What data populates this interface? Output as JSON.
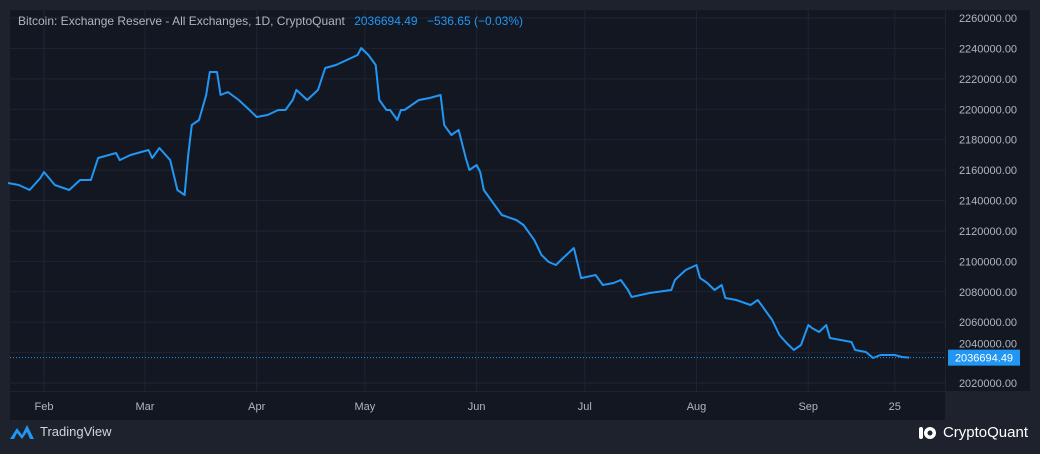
{
  "legend": {
    "title": "Bitcoin: Exchange Reserve - All Exchanges, 1D, CryptoQuant",
    "last_value": "2036694.49",
    "change": "−536.65 (−0.03%)"
  },
  "footer": {
    "left_brand": "TradingView",
    "right_brand": "CryptoQuant"
  },
  "colors": {
    "line": "#2196f3",
    "background": "#131722",
    "grid": "#1f2433",
    "text": "#b2b5be"
  },
  "chart_data": {
    "type": "line",
    "title": "Bitcoin: Exchange Reserve - All Exchanges, 1D, CryptoQuant",
    "ylim": [
      2010000,
      2265000
    ],
    "y_ticks": [
      "2260000.00",
      "2240000.00",
      "2220000.00",
      "2200000.00",
      "2180000.00",
      "2160000.00",
      "2140000.00",
      "2120000.00",
      "2100000.00",
      "2080000.00",
      "2060000.00",
      "2040000.00",
      "2020000.00"
    ],
    "x_ticks": [
      {
        "label": "Feb",
        "date": "02-01"
      },
      {
        "label": "Mar",
        "date": "03-01"
      },
      {
        "label": "Apr",
        "date": "04-01"
      },
      {
        "label": "May",
        "date": "05-01"
      },
      {
        "label": "Jun",
        "date": "06-01"
      },
      {
        "label": "Jul",
        "date": "07-01"
      },
      {
        "label": "Aug",
        "date": "08-01"
      },
      {
        "label": "Sep",
        "date": "09-01"
      },
      {
        "label": "25",
        "date": "09-25"
      }
    ],
    "last_price_label": "2036694.49",
    "last_price": 2036694.49,
    "grid": true,
    "series": [
      {
        "points": [
          [
            "01-22",
            2151500
          ],
          [
            "01-25",
            2150200
          ],
          [
            "01-28",
            2146900
          ],
          [
            "01-31",
            2154800
          ],
          [
            "02-01",
            2158750
          ],
          [
            "02-04",
            2150200
          ],
          [
            "02-08",
            2146900
          ],
          [
            "02-11",
            2153500
          ],
          [
            "02-14",
            2153500
          ],
          [
            "02-16",
            2167950
          ],
          [
            "02-21",
            2171250
          ],
          [
            "02-22",
            2166600
          ],
          [
            "02-25",
            2169900
          ],
          [
            "03-02",
            2173200
          ],
          [
            "03-03",
            2167950
          ],
          [
            "03-05",
            2174500
          ],
          [
            "03-08",
            2166600
          ],
          [
            "03-10",
            2146900
          ],
          [
            "03-12",
            2143600
          ],
          [
            "03-13",
            2169900
          ],
          [
            "03-14",
            2189650
          ],
          [
            "03-16",
            2192950
          ],
          [
            "03-18",
            2209400
          ],
          [
            "03-19",
            2224500
          ],
          [
            "03-21",
            2224500
          ],
          [
            "03-22",
            2209400
          ],
          [
            "03-24",
            2211350
          ],
          [
            "03-27",
            2206100
          ],
          [
            "03-30",
            2199500
          ],
          [
            "04-01",
            2194900
          ],
          [
            "04-04",
            2196200
          ],
          [
            "04-07",
            2199500
          ],
          [
            "04-09",
            2199500
          ],
          [
            "04-11",
            2206100
          ],
          [
            "04-12",
            2212700
          ],
          [
            "04-15",
            2206100
          ],
          [
            "04-18",
            2212700
          ],
          [
            "04-20",
            2227100
          ],
          [
            "04-23",
            2229100
          ],
          [
            "04-26",
            2232400
          ],
          [
            "04-29",
            2235700
          ],
          [
            "04-30",
            2240300
          ],
          [
            "05-02",
            2235700
          ],
          [
            "05-04",
            2229100
          ],
          [
            "05-05",
            2206100
          ],
          [
            "05-07",
            2199500
          ],
          [
            "05-08",
            2199500
          ],
          [
            "05-10",
            2192950
          ],
          [
            "05-11",
            2199500
          ],
          [
            "05-12",
            2199500
          ],
          [
            "05-14",
            2202800
          ],
          [
            "05-16",
            2206100
          ],
          [
            "05-19",
            2207400
          ],
          [
            "05-22",
            2209400
          ],
          [
            "05-23",
            2189650
          ],
          [
            "05-25",
            2183100
          ],
          [
            "05-27",
            2186400
          ],
          [
            "05-29",
            2167950
          ],
          [
            "05-30",
            2160050
          ],
          [
            "06-01",
            2163350
          ],
          [
            "06-02",
            2158750
          ],
          [
            "06-03",
            2146900
          ],
          [
            "06-05",
            2140350
          ],
          [
            "06-06",
            2137050
          ],
          [
            "06-08",
            2130500
          ],
          [
            "06-12",
            2127200
          ],
          [
            "06-14",
            2123900
          ],
          [
            "06-17",
            2114000
          ],
          [
            "06-19",
            2104200
          ],
          [
            "06-21",
            2099600
          ],
          [
            "06-23",
            2097600
          ],
          [
            "06-25",
            2102200
          ],
          [
            "06-28",
            2108800
          ],
          [
            "06-30",
            2089000
          ],
          [
            "07-04",
            2091000
          ],
          [
            "07-06",
            2084450
          ],
          [
            "07-09",
            2085750
          ],
          [
            "07-11",
            2087750
          ],
          [
            "07-13",
            2081150
          ],
          [
            "07-14",
            2076550
          ],
          [
            "07-19",
            2079200
          ],
          [
            "07-25",
            2081150
          ],
          [
            "07-26",
            2087750
          ],
          [
            "07-29",
            2094300
          ],
          [
            "08-01",
            2097600
          ],
          [
            "08-02",
            2089000
          ],
          [
            "08-04",
            2085750
          ],
          [
            "08-06",
            2081150
          ],
          [
            "08-08",
            2084450
          ],
          [
            "08-09",
            2075900
          ],
          [
            "08-12",
            2074600
          ],
          [
            "08-16",
            2071300
          ],
          [
            "08-18",
            2074600
          ],
          [
            "08-20",
            2068000
          ],
          [
            "08-22",
            2061450
          ],
          [
            "08-24",
            2051600
          ],
          [
            "08-26",
            2046300
          ],
          [
            "08-28",
            2041700
          ],
          [
            "08-30",
            2045000
          ],
          [
            "09-01",
            2058150
          ],
          [
            "09-02",
            2056200
          ],
          [
            "09-04",
            2053550
          ],
          [
            "09-06",
            2058150
          ],
          [
            "09-07",
            2049600
          ],
          [
            "09-10",
            2048300
          ],
          [
            "09-13",
            2047000
          ],
          [
            "09-14",
            2041700
          ],
          [
            "09-17",
            2040400
          ],
          [
            "09-19",
            2036450
          ],
          [
            "09-21",
            2038450
          ],
          [
            "09-25",
            2038450
          ],
          [
            "09-27",
            2037100
          ],
          [
            "09-29",
            2036694.49
          ]
        ]
      }
    ]
  }
}
